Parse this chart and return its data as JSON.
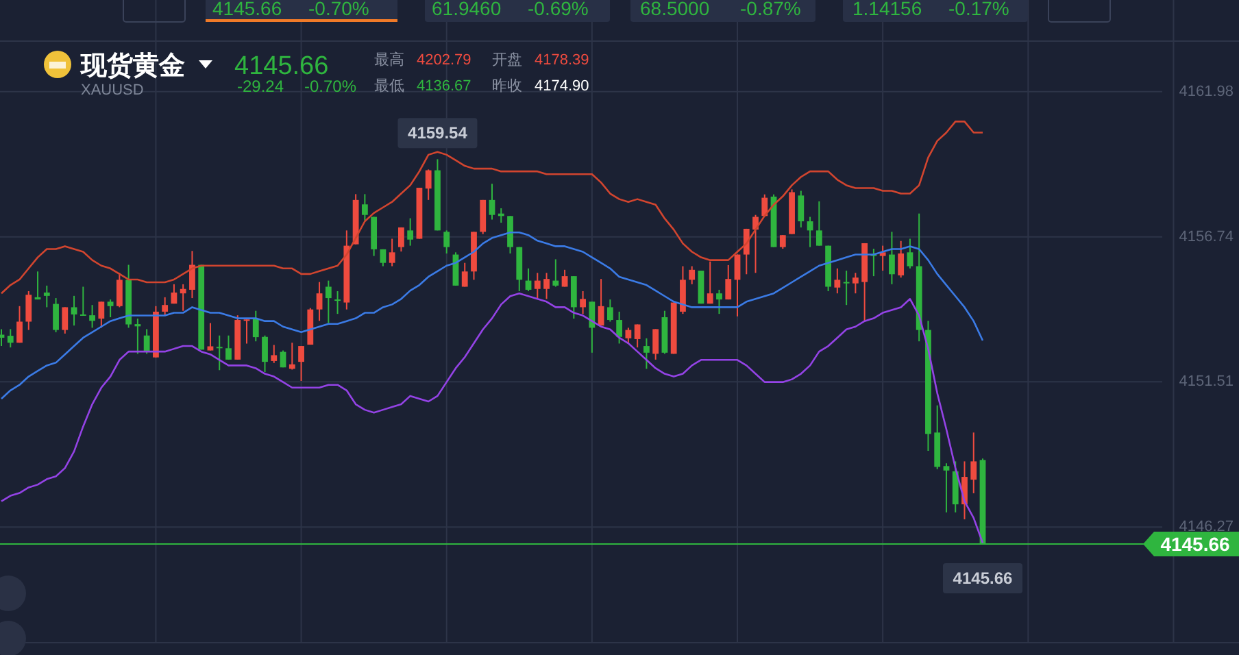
{
  "chart_data": {
    "type": "candlestick",
    "title": "现货黄金",
    "subtitle": "XAUUSD",
    "categories": [
      null,
      null,
      null,
      null,
      null,
      null,
      null,
      null,
      null,
      null,
      null,
      null,
      null,
      null,
      null,
      null,
      null,
      null,
      null,
      null,
      null,
      null,
      null,
      null,
      null,
      null,
      null,
      null,
      null,
      null,
      null,
      null,
      null,
      null,
      null,
      null,
      null,
      null,
      null,
      null,
      null,
      null,
      null,
      null,
      null,
      null,
      null,
      null,
      null,
      null,
      null,
      null,
      null,
      null,
      null,
      null,
      null,
      null,
      null,
      null,
      null,
      null,
      null,
      null,
      null,
      null,
      null,
      null,
      null,
      null,
      null,
      null,
      null,
      null,
      null,
      null,
      null,
      null,
      null,
      null,
      null,
      null,
      null,
      null,
      null,
      null,
      null,
      null,
      null,
      null,
      null,
      null,
      null,
      null,
      null,
      null,
      null,
      null,
      null,
      null,
      null,
      null,
      null,
      null,
      null,
      null,
      null,
      null,
      null
    ],
    "ohlc": [
      [
        4153.21,
        4153.41,
        4152.8,
        4153.1
      ],
      [
        4153.17,
        4153.41,
        4152.75,
        4152.92
      ],
      [
        4152.92,
        4154.24,
        4152.92,
        4153.68
      ],
      [
        4153.68,
        4154.78,
        4153.38,
        4154.65
      ],
      [
        4154.56,
        4155.49,
        4154.48,
        4154.48
      ],
      [
        4154.73,
        4154.98,
        4154.2,
        4154.61
      ],
      [
        4154.32,
        4154.53,
        4153.3,
        4153.38
      ],
      [
        4153.38,
        4154.2,
        4153.25,
        4154.2
      ],
      [
        4154.2,
        4154.61,
        4153.54,
        4153.94
      ],
      [
        4153.94,
        4154.94,
        4153.91,
        4153.91
      ],
      [
        4153.91,
        4154.28,
        4153.46,
        4153.71
      ],
      [
        4153.79,
        4154.4,
        4153.46,
        4154.4
      ],
      [
        4154.4,
        4154.48,
        4153.84,
        4154.24
      ],
      [
        4154.24,
        4155.44,
        4154.2,
        4155.19
      ],
      [
        4155.19,
        4155.73,
        4153.46,
        4153.58
      ],
      [
        4153.59,
        4153.79,
        4152.52,
        4153.51
      ],
      [
        4153.18,
        4153.41,
        4152.52,
        4152.59
      ],
      [
        4152.39,
        4154.24,
        4152.39,
        4154.04
      ],
      [
        4154.04,
        4154.56,
        4153.91,
        4154.28
      ],
      [
        4154.33,
        4155.03,
        4154.33,
        4154.73
      ],
      [
        4154.7,
        4155.03,
        4154.07,
        4154.86
      ],
      [
        4154.83,
        4156.23,
        4154.53,
        4155.73
      ],
      [
        4155.73,
        4155.73,
        4152.67,
        4152.67
      ],
      [
        4152.64,
        4153.63,
        4152.64,
        4152.79
      ],
      [
        4152.77,
        4153.18,
        4151.93,
        4152.72
      ],
      [
        4152.72,
        4153.18,
        4152.31,
        4152.31
      ],
      [
        4152.31,
        4153.91,
        4152.31,
        4153.74
      ],
      [
        4153.74,
        4153.76,
        4152.89,
        4153.76
      ],
      [
        4153.79,
        4154.07,
        4152.97,
        4153.12
      ],
      [
        4153.13,
        4153.18,
        4151.86,
        4152.23
      ],
      [
        4152.26,
        4152.84,
        4152.19,
        4152.47
      ],
      [
        4152.59,
        4152.64,
        4152.03,
        4152.03
      ],
      [
        4151.98,
        4152.92,
        4151.95,
        4152.14
      ],
      [
        4152.23,
        4152.8,
        4151.54,
        4152.8
      ],
      [
        4152.85,
        4154.17,
        4152.85,
        4154.12
      ],
      [
        4154.12,
        4155.11,
        4153.71,
        4154.7
      ],
      [
        4154.94,
        4155.16,
        4153.63,
        4154.53
      ],
      [
        4154.48,
        4154.78,
        4153.96,
        4154.45
      ],
      [
        4154.37,
        4156.97,
        4154.12,
        4156.42
      ],
      [
        4156.47,
        4158.28,
        4156.47,
        4158.07
      ],
      [
        4157.91,
        4158.28,
        4157.33,
        4157.53
      ],
      [
        4157.46,
        4157.46,
        4156.05,
        4156.29
      ],
      [
        4156.29,
        4156.29,
        4155.68,
        4155.8
      ],
      [
        4155.8,
        4156.67,
        4155.68,
        4156.18
      ],
      [
        4156.37,
        4157.08,
        4156.21,
        4157.08
      ],
      [
        4156.97,
        4157.41,
        4156.42,
        4156.64
      ],
      [
        4156.67,
        4158.51,
        4156.67,
        4158.51
      ],
      [
        4158.48,
        4159.17,
        4158.07,
        4159.14
      ],
      [
        4159.14,
        4159.54,
        4156.97,
        4156.97
      ],
      [
        4156.92,
        4156.97,
        4156.14,
        4156.37
      ],
      [
        4156.1,
        4156.18,
        4154.98,
        4154.98
      ],
      [
        4154.94,
        4155.8,
        4154.94,
        4155.49
      ],
      [
        4155.49,
        4156.92,
        4155.19,
        4156.92
      ],
      [
        4156.92,
        4158.07,
        4156.84,
        4158.07
      ],
      [
        4158.07,
        4158.65,
        4157.36,
        4157.53
      ],
      [
        4157.58,
        4157.77,
        4157.25,
        4157.49
      ],
      [
        4157.49,
        4157.49,
        4156.14,
        4156.37
      ],
      [
        4156.37,
        4156.37,
        4154.78,
        4155.19
      ],
      [
        4155.16,
        4155.6,
        4154.78,
        4154.83
      ],
      [
        4154.86,
        4155.44,
        4154.53,
        4155.16
      ],
      [
        4154.86,
        4155.44,
        4154.5,
        4155.22
      ],
      [
        4155.16,
        4155.93,
        4154.94,
        4154.98
      ],
      [
        4154.94,
        4155.55,
        4154.94,
        4155.32
      ],
      [
        4155.32,
        4155.32,
        4153.79,
        4154.2
      ],
      [
        4154.2,
        4154.78,
        4153.96,
        4154.5
      ],
      [
        4154.4,
        4154.4,
        4152.56,
        4153.46
      ],
      [
        4153.54,
        4155.22,
        4153.54,
        4154.24
      ],
      [
        4154.2,
        4154.48,
        4153.68,
        4153.74
      ],
      [
        4153.74,
        4154.04,
        4152.89,
        4153.13
      ],
      [
        4153.08,
        4153.46,
        4152.89,
        4153.38
      ],
      [
        4153.05,
        4153.58,
        4152.75,
        4153.58
      ],
      [
        4152.8,
        4153.08,
        4151.98,
        4152.56
      ],
      [
        4152.52,
        4153.41,
        4152.31,
        4153.41
      ],
      [
        4153.84,
        4154.07,
        4152.52,
        4152.56
      ],
      [
        4152.52,
        4154.37,
        4152.52,
        4154.37
      ],
      [
        4154.04,
        4155.68,
        4153.96,
        4155.19
      ],
      [
        4155.19,
        4155.68,
        4155.03,
        4155.55
      ],
      [
        4155.52,
        4155.52,
        4154.33,
        4154.33
      ],
      [
        4154.33,
        4155.85,
        4154.33,
        4154.7
      ],
      [
        4154.7,
        4154.83,
        4153.96,
        4154.48
      ],
      [
        4154.48,
        4155.72,
        4154.48,
        4155.22
      ],
      [
        4155.19,
        4156.1,
        4153.87,
        4156.1
      ],
      [
        4156.1,
        4157.03,
        4155.39,
        4157.03
      ],
      [
        4157.0,
        4157.53,
        4155.44,
        4157.46
      ],
      [
        4157.49,
        4158.27,
        4157.46,
        4158.15
      ],
      [
        4158.19,
        4158.27,
        4156.37,
        4156.37
      ],
      [
        4156.37,
        4156.8,
        4156.31,
        4156.8
      ],
      [
        4156.84,
        4158.45,
        4156.84,
        4158.35
      ],
      [
        4158.23,
        4158.4,
        4157.08,
        4157.3
      ],
      [
        4157.3,
        4157.46,
        4156.37,
        4156.97
      ],
      [
        4156.97,
        4158.02,
        4156.42,
        4156.42
      ],
      [
        4156.42,
        4156.42,
        4154.78,
        4154.94
      ],
      [
        4154.91,
        4155.6,
        4154.7,
        4155.19
      ],
      [
        4155.11,
        4155.52,
        4154.28,
        4155.07
      ],
      [
        4155.06,
        4155.44,
        4154.7,
        4155.27
      ],
      [
        4155.11,
        4156.51,
        4153.71,
        4156.51
      ],
      [
        4156.1,
        4156.31,
        4155.32,
        4156.05
      ],
      [
        4156.05,
        4156.42,
        4155.52,
        4156.18
      ],
      [
        4156.1,
        4156.92,
        4155.03,
        4155.39
      ],
      [
        4155.35,
        4156.59,
        4155.27,
        4156.14
      ],
      [
        4156.18,
        4156.67,
        4155.6,
        4155.68
      ],
      [
        4155.68,
        4157.58,
        4152.97,
        4153.38
      ],
      [
        4153.38,
        4153.71,
        4149.02,
        4149.63
      ],
      [
        4149.68,
        4150.66,
        4148.36,
        4148.44
      ],
      [
        4148.47,
        4148.57,
        4146.8,
        4148.31
      ],
      [
        4148.28,
        4148.64,
        4146.8,
        4147.09
      ],
      [
        4147.09,
        4148.64,
        4146.55,
        4148.08
      ],
      [
        4147.98,
        4149.68,
        4147.49,
        4148.64
      ],
      [
        4148.69,
        4148.74,
        4145.66,
        4145.66
      ]
    ],
    "colors": [
      "#2fb53f",
      "#2fb53f",
      "#ef4b3f",
      "#ef4b3f",
      "#2fb53f",
      "#2fb53f",
      "#2fb53f",
      "#ef4b3f",
      "#2fb53f",
      "#2fb53f",
      "#2fb53f",
      "#ef4b3f",
      "#2fb53f",
      "#ef4b3f",
      "#2fb53f",
      "#2fb53f",
      "#2fb53f",
      "#ef4b3f",
      "#ef4b3f",
      "#ef4b3f",
      "#ef4b3f",
      "#ef4b3f",
      "#2fb53f",
      "#ef4b3f",
      "#2fb53f",
      "#2fb53f",
      "#ef4b3f",
      "#ef4b3f",
      "#2fb53f",
      "#2fb53f",
      "#ef4b3f",
      "#2fb53f",
      "#ef4b3f",
      "#ef4b3f",
      "#ef4b3f",
      "#ef4b3f",
      "#2fb53f",
      "#2fb53f",
      "#ef4b3f",
      "#ef4b3f",
      "#2fb53f",
      "#2fb53f",
      "#2fb53f",
      "#ef4b3f",
      "#ef4b3f",
      "#2fb53f",
      "#ef4b3f",
      "#ef4b3f",
      "#2fb53f",
      "#2fb53f",
      "#2fb53f",
      "#ef4b3f",
      "#ef4b3f",
      "#ef4b3f",
      "#2fb53f",
      "#2fb53f",
      "#2fb53f",
      "#2fb53f",
      "#2fb53f",
      "#ef4b3f",
      "#ef4b3f",
      "#2fb53f",
      "#ef4b3f",
      "#2fb53f",
      "#ef4b3f",
      "#2fb53f",
      "#ef4b3f",
      "#2fb53f",
      "#2fb53f",
      "#ef4b3f",
      "#ef4b3f",
      "#2fb53f",
      "#ef4b3f",
      "#2fb53f",
      "#ef4b3f",
      "#ef4b3f",
      "#ef4b3f",
      "#2fb53f",
      "#ef4b3f",
      "#2fb53f",
      "#ef4b3f",
      "#ef4b3f",
      "#ef4b3f",
      "#ef4b3f",
      "#ef4b3f",
      "#2fb53f",
      "#ef4b3f",
      "#ef4b3f",
      "#2fb53f",
      "#2fb53f",
      "#2fb53f",
      "#2fb53f",
      "#ef4b3f",
      "#2fb53f",
      "#ef4b3f",
      "#ef4b3f",
      "#2fb53f",
      "#ef4b3f",
      "#2fb53f",
      "#ef4b3f",
      "#2fb53f",
      "#2fb53f",
      "#2fb53f",
      "#2fb53f",
      "#2fb53f",
      "#2fb53f",
      "#ef4b3f",
      "#ef4b3f",
      "#2fb53f"
    ],
    "series": [
      {
        "type": "line",
        "color": "#d2452f",
        "values": [
          4154.7,
          4155.0,
          4155.2,
          4155.6,
          4156.0,
          4156.3,
          4156.3,
          4156.4,
          4156.3,
          4156.2,
          4155.9,
          4155.7,
          4155.6,
          4155.4,
          4155.2,
          4155.2,
          4155.1,
          4155.1,
          4155.1,
          4155.2,
          4155.4,
          4155.6,
          4155.7,
          4155.7,
          4155.7,
          4155.7,
          4155.7,
          4155.7,
          4155.7,
          4155.7,
          4155.7,
          4155.6,
          4155.6,
          4155.4,
          4155.4,
          4155.5,
          4155.6,
          4155.7,
          4156.1,
          4156.7,
          4157.3,
          4157.6,
          4157.8,
          4158.0,
          4158.3,
          4158.6,
          4159.1,
          4159.7,
          4159.8,
          4159.7,
          4159.5,
          4159.3,
          4159.2,
          4159.2,
          4159.2,
          4159.1,
          4159.1,
          4159.1,
          4159.1,
          4159.1,
          4159.0,
          4159.0,
          4159.0,
          4159.0,
          4159.0,
          4159.0,
          4158.7,
          4158.3,
          4158.1,
          4158.0,
          4158.1,
          4158.0,
          4157.9,
          4157.4,
          4157.0,
          4156.5,
          4156.2,
          4156.0,
          4155.9,
          4155.9,
          4155.9,
          4156.2,
          4156.5,
          4157.0,
          4157.5,
          4157.9,
          4158.2,
          4158.6,
          4158.9,
          4159.1,
          4159.1,
          4159.1,
          4158.8,
          4158.6,
          4158.5,
          4158.5,
          4158.5,
          4158.4,
          4158.4,
          4158.3,
          4158.3,
          4158.6,
          4159.6,
          4160.2,
          4160.5,
          4160.9,
          4160.9,
          4160.5,
          4160.5
        ]
      },
      {
        "type": "line",
        "color": "#3b7be6",
        "values": [
          4150.9,
          4151.2,
          4151.4,
          4151.7,
          4151.9,
          4152.1,
          4152.2,
          4152.5,
          4152.8,
          4153.1,
          4153.3,
          4153.5,
          4153.7,
          4153.8,
          4153.9,
          4153.9,
          4153.9,
          4153.9,
          4153.9,
          4154.0,
          4154.0,
          4154.2,
          4154.1,
          4154.0,
          4154.0,
          4153.9,
          4153.8,
          4153.8,
          4153.8,
          4153.7,
          4153.7,
          4153.5,
          4153.4,
          4153.3,
          4153.4,
          4153.5,
          4153.6,
          4153.6,
          4153.7,
          4153.8,
          4154.0,
          4154.0,
          4154.2,
          4154.3,
          4154.5,
          4154.8,
          4155.0,
          4155.3,
          4155.5,
          4155.7,
          4155.8,
          4156.0,
          4156.2,
          4156.5,
          4156.7,
          4156.8,
          4156.9,
          4156.9,
          4156.8,
          4156.6,
          4156.5,
          4156.4,
          4156.4,
          4156.3,
          4156.2,
          4156.0,
          4155.8,
          4155.6,
          4155.3,
          4155.2,
          4155.1,
          4155.0,
          4154.8,
          4154.6,
          4154.4,
          4154.3,
          4154.2,
          4154.2,
          4154.2,
          4154.2,
          4154.2,
          4154.2,
          4154.4,
          4154.5,
          4154.6,
          4154.7,
          4154.9,
          4155.1,
          4155.3,
          4155.5,
          4155.7,
          4155.8,
          4155.9,
          4156.0,
          4156.1,
          4156.1,
          4156.1,
          4156.2,
          4156.3,
          4156.3,
          4156.4,
          4156.3,
          4155.9,
          4155.4,
          4155.0,
          4154.6,
          4154.2,
          4153.7,
          4153.0
        ]
      },
      {
        "type": "line",
        "color": "#9443e6",
        "values": [
          4147.2,
          4147.4,
          4147.5,
          4147.7,
          4147.8,
          4148.0,
          4148.1,
          4148.4,
          4149.0,
          4149.9,
          4150.7,
          4151.3,
          4151.7,
          4152.3,
          4152.6,
          4152.6,
          4152.6,
          4152.6,
          4152.6,
          4152.7,
          4152.8,
          4152.8,
          4152.6,
          4152.5,
          4152.3,
          4152.1,
          4152.1,
          4152.1,
          4152.0,
          4151.8,
          4151.7,
          4151.5,
          4151.3,
          4151.3,
          4151.3,
          4151.3,
          4151.4,
          4151.4,
          4151.2,
          4150.7,
          4150.5,
          4150.4,
          4150.5,
          4150.6,
          4150.7,
          4151.0,
          4150.9,
          4150.8,
          4151.0,
          4151.5,
          4152.0,
          4152.4,
          4152.9,
          4153.4,
          4153.8,
          4154.3,
          4154.6,
          4154.7,
          4154.6,
          4154.5,
          4154.4,
          4154.2,
          4154.2,
          4154.0,
          4153.9,
          4153.7,
          4153.5,
          4153.4,
          4153.1,
          4152.9,
          4152.6,
          4152.3,
          4152.0,
          4151.8,
          4151.7,
          4151.8,
          4152.1,
          4152.3,
          4152.3,
          4152.3,
          4152.3,
          4152.3,
          4152.1,
          4151.8,
          4151.5,
          4151.5,
          4151.5,
          4151.6,
          4151.8,
          4152.1,
          4152.6,
          4152.8,
          4153.1,
          4153.4,
          4153.5,
          4153.7,
          4153.8,
          4154.0,
          4154.1,
          4154.2,
          4154.5,
          4153.9,
          4152.7,
          4151.1,
          4149.8,
          4148.4,
          4147.2,
          4146.6,
          4145.7
        ]
      }
    ],
    "ylim": [
      4142.1,
      4163.8
    ],
    "yticks": [
      4146.27,
      4151.51,
      4156.74,
      4161.98
    ],
    "grid": true,
    "tick_labels": "y",
    "ref_lines": [
      {
        "axis": "y",
        "value": 4145.66,
        "label": "4145.66",
        "color": "#2fb53f"
      }
    ],
    "annotations": [
      "4145.66",
      "-29.24",
      "-0.70%",
      "最高",
      "4202.79",
      "开盘",
      "4178.39",
      "最低",
      "4136.67",
      "昨收",
      "4174.90",
      "4145.66",
      "-0.70%",
      "61.9460",
      "-0.69%",
      "68.5000",
      "-0.87%",
      "1.14156",
      "-0.17%",
      {
        "text": "4159.54",
        "y": 4159.54
      },
      {
        "text": "4145.66",
        "y": 4145.66
      }
    ]
  }
}
